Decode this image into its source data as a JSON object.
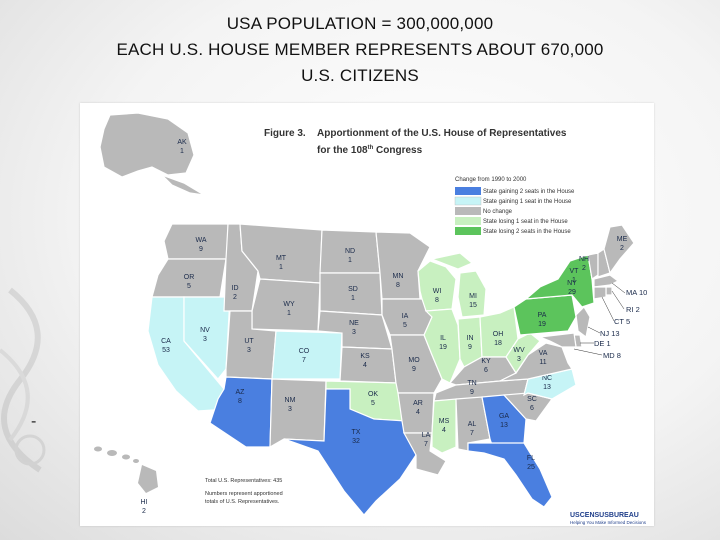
{
  "slide": {
    "line1": "USA POPULATION = 300,000,000",
    "line2": "EACH U.S. HOUSE MEMBER REPRESENTS ABOUT 670,000",
    "line3": "U.S. CITIZENS",
    "bullet": "-"
  },
  "figure": {
    "label": "Figure 3.",
    "title_line1": "Apportionment of the U.S. House of Representatives",
    "title_line2_pre": "for the 108",
    "title_line2_sup": "th",
    "title_line2_post": " Congress"
  },
  "legend": {
    "heading": "Change from 1990 to 2000",
    "items": [
      {
        "label": "State gaining 2 seats in the House",
        "color": "#4a7fe0"
      },
      {
        "label": "State gaining 1 seat in the House",
        "color": "#c6f4f6"
      },
      {
        "label": "No change",
        "color": "#b9b9b9"
      },
      {
        "label": "State losing 1 seat in the House",
        "color": "#c8f0c0"
      },
      {
        "label": "State losing 2 seats in the House",
        "color": "#5cc45c"
      }
    ]
  },
  "notes": {
    "total": "Total U.S. Representatives: 435",
    "numbers_line1": "Numbers represent apportioned",
    "numbers_line2": "totals of U.S. Representatives."
  },
  "census": {
    "logo": "USCENSUSBUREAU",
    "tagline": "Helping You Make Informed Decisions"
  },
  "states": {
    "AK": {
      "abbr": "AK",
      "seats": "1"
    },
    "HI": {
      "abbr": "HI",
      "seats": "2"
    },
    "WA": {
      "abbr": "WA",
      "seats": "9"
    },
    "OR": {
      "abbr": "OR",
      "seats": "5"
    },
    "CA": {
      "abbr": "CA",
      "seats": "53"
    },
    "NV": {
      "abbr": "NV",
      "seats": "3"
    },
    "ID": {
      "abbr": "ID",
      "seats": "2"
    },
    "MT": {
      "abbr": "MT",
      "seats": "1"
    },
    "WY": {
      "abbr": "WY",
      "seats": "1"
    },
    "UT": {
      "abbr": "UT",
      "seats": "3"
    },
    "AZ": {
      "abbr": "AZ",
      "seats": "8"
    },
    "CO": {
      "abbr": "CO",
      "seats": "7"
    },
    "NM": {
      "abbr": "NM",
      "seats": "3"
    },
    "ND": {
      "abbr": "ND",
      "seats": "1"
    },
    "SD": {
      "abbr": "SD",
      "seats": "1"
    },
    "NE": {
      "abbr": "NE",
      "seats": "3"
    },
    "KS": {
      "abbr": "KS",
      "seats": "4"
    },
    "OK": {
      "abbr": "OK",
      "seats": "5"
    },
    "TX": {
      "abbr": "TX",
      "seats": "32"
    },
    "MN": {
      "abbr": "MN",
      "seats": "8"
    },
    "IA": {
      "abbr": "IA",
      "seats": "5"
    },
    "MO": {
      "abbr": "MO",
      "seats": "9"
    },
    "AR": {
      "abbr": "AR",
      "seats": "4"
    },
    "LA": {
      "abbr": "LA",
      "seats": "7"
    },
    "WI": {
      "abbr": "WI",
      "seats": "8"
    },
    "IL": {
      "abbr": "IL",
      "seats": "19"
    },
    "MI": {
      "abbr": "MI",
      "seats": "15"
    },
    "IN": {
      "abbr": "IN",
      "seats": "9"
    },
    "OH": {
      "abbr": "OH",
      "seats": "18"
    },
    "KY": {
      "abbr": "KY",
      "seats": "6"
    },
    "TN": {
      "abbr": "TN",
      "seats": "9"
    },
    "MS": {
      "abbr": "MS",
      "seats": "4"
    },
    "AL": {
      "abbr": "AL",
      "seats": "7"
    },
    "GA": {
      "abbr": "GA",
      "seats": "13"
    },
    "FL": {
      "abbr": "FL",
      "seats": "25"
    },
    "SC": {
      "abbr": "SC",
      "seats": "6"
    },
    "NC": {
      "abbr": "NC",
      "seats": "13"
    },
    "VA": {
      "abbr": "VA",
      "seats": "11"
    },
    "WV": {
      "abbr": "WV",
      "seats": "3"
    },
    "PA": {
      "abbr": "PA",
      "seats": "19"
    },
    "NY": {
      "abbr": "NY",
      "seats": "29"
    },
    "VT": {
      "abbr": "VT",
      "seats": "1"
    },
    "NH": {
      "abbr": "NH",
      "seats": "2"
    },
    "ME": {
      "abbr": "ME",
      "seats": "2"
    },
    "MA": {
      "abbr": "MA",
      "seats": "10"
    },
    "RI": {
      "abbr": "RI",
      "seats": "2"
    },
    "CT": {
      "abbr": "CT",
      "seats": "5"
    },
    "NJ": {
      "abbr": "NJ",
      "seats": "13"
    },
    "DE": {
      "abbr": "DE",
      "seats": "1"
    },
    "MD": {
      "abbr": "MD",
      "seats": "8"
    }
  }
}
